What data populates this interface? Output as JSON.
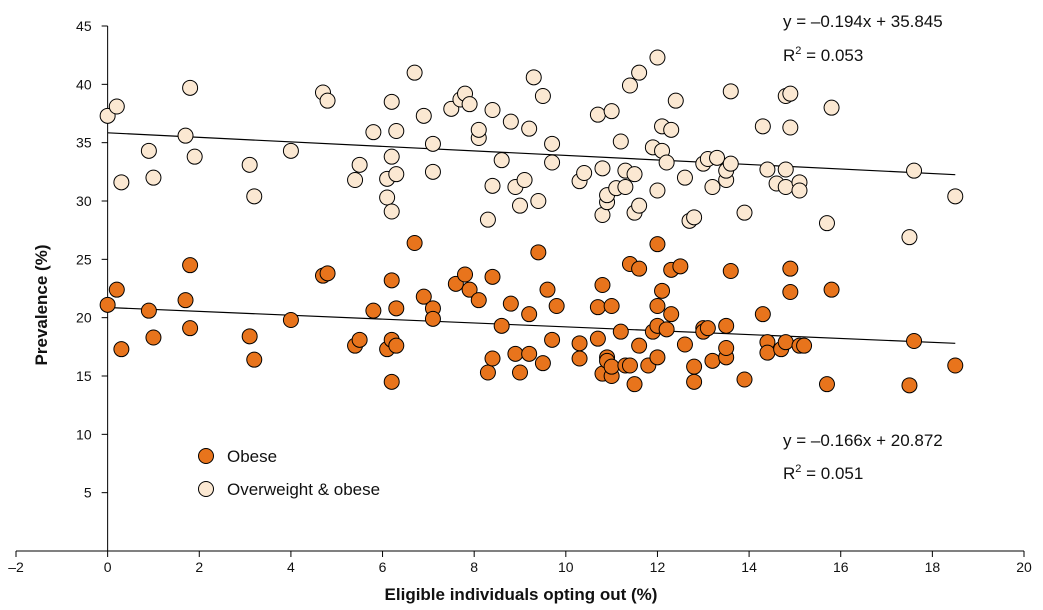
{
  "chart_data": {
    "type": "scatter",
    "xlabel": "Eligible individuals opting out (%)",
    "ylabel": "Prevalence (%)",
    "xlim": [
      -2,
      20
    ],
    "ylim": [
      0,
      45
    ],
    "x_ticks": [
      "–2",
      "0",
      "2",
      "4",
      "6",
      "8",
      "10",
      "12",
      "14",
      "16",
      "18",
      "20"
    ],
    "y_ticks": [
      "5",
      "10",
      "15",
      "20",
      "25",
      "30",
      "35",
      "40",
      "45"
    ],
    "grid": false,
    "legend_position": "lower-left inside",
    "series": [
      {
        "name": "Obese",
        "color": "#e8741c",
        "trend": {
          "slope": -0.166,
          "intercept": 20.872,
          "equation": "y = –0.166x + 20.872",
          "r2_prefix": "R",
          "r2_exp": "2",
          "r2_value": " = 0.051"
        },
        "points": [
          [
            0,
            21.1
          ],
          [
            0.2,
            22.4
          ],
          [
            0.3,
            17.3
          ],
          [
            0.9,
            20.6
          ],
          [
            1,
            18.3
          ],
          [
            1.7,
            21.5
          ],
          [
            1.8,
            24.5
          ],
          [
            1.8,
            19.1
          ],
          [
            3.1,
            18.4
          ],
          [
            3.2,
            16.4
          ],
          [
            4,
            19.8
          ],
          [
            4.7,
            23.6
          ],
          [
            4.8,
            23.8
          ],
          [
            5.4,
            17.6
          ],
          [
            5.5,
            18.1
          ],
          [
            5.8,
            20.6
          ],
          [
            6.1,
            17.3
          ],
          [
            6.2,
            23.2
          ],
          [
            6.2,
            18.1
          ],
          [
            6.2,
            14.5
          ],
          [
            6.3,
            17.6
          ],
          [
            6.3,
            20.8
          ],
          [
            6.7,
            26.4
          ],
          [
            6.9,
            21.8
          ],
          [
            7.1,
            20.8
          ],
          [
            7.1,
            19.9
          ],
          [
            7.6,
            22.9
          ],
          [
            7.8,
            23.7
          ],
          [
            7.9,
            22.4
          ],
          [
            8.1,
            21.5
          ],
          [
            8.3,
            15.3
          ],
          [
            8.4,
            23.5
          ],
          [
            8.4,
            16.5
          ],
          [
            8.6,
            19.3
          ],
          [
            8.8,
            21.2
          ],
          [
            8.9,
            16.9
          ],
          [
            9,
            15.3
          ],
          [
            9.2,
            16.9
          ],
          [
            9.2,
            20.3
          ],
          [
            9.4,
            25.6
          ],
          [
            9.5,
            16.1
          ],
          [
            9.6,
            22.4
          ],
          [
            9.7,
            18.1
          ],
          [
            9.8,
            21
          ],
          [
            10.3,
            16.5
          ],
          [
            10.3,
            17.8
          ],
          [
            10.7,
            20.9
          ],
          [
            10.7,
            18.2
          ],
          [
            10.8,
            15.2
          ],
          [
            10.8,
            22.8
          ],
          [
            10.9,
            16.6
          ],
          [
            10.9,
            16.3
          ],
          [
            11,
            15
          ],
          [
            11,
            21
          ],
          [
            11,
            15.8
          ],
          [
            11.2,
            18.8
          ],
          [
            11.3,
            15.9
          ],
          [
            11.4,
            24.6
          ],
          [
            11.4,
            15.9
          ],
          [
            11.5,
            14.3
          ],
          [
            11.6,
            24.2
          ],
          [
            11.6,
            17.6
          ],
          [
            11.8,
            15.9
          ],
          [
            11.9,
            18.8
          ],
          [
            12,
            26.3
          ],
          [
            12,
            21
          ],
          [
            12,
            19.3
          ],
          [
            12,
            16.6
          ],
          [
            12.1,
            22.3
          ],
          [
            12.2,
            19
          ],
          [
            12.3,
            24.1
          ],
          [
            12.3,
            20.3
          ],
          [
            12.5,
            24.4
          ],
          [
            12.6,
            17.7
          ],
          [
            12.8,
            15.8
          ],
          [
            12.8,
            14.5
          ],
          [
            13,
            19.1
          ],
          [
            13,
            18.8
          ],
          [
            13.1,
            19.1
          ],
          [
            13.2,
            16.3
          ],
          [
            13.5,
            16.6
          ],
          [
            13.5,
            19.3
          ],
          [
            13.5,
            17.4
          ],
          [
            13.6,
            24
          ],
          [
            13.9,
            14.7
          ],
          [
            14.3,
            20.3
          ],
          [
            14.4,
            17.9
          ],
          [
            14.4,
            17
          ],
          [
            14.7,
            17.3
          ],
          [
            14.8,
            17.9
          ],
          [
            14.9,
            22.2
          ],
          [
            14.9,
            24.2
          ],
          [
            15.1,
            17.6
          ],
          [
            15.2,
            17.6
          ],
          [
            15.7,
            14.3
          ],
          [
            15.8,
            22.4
          ],
          [
            17.5,
            14.2
          ],
          [
            17.6,
            18
          ],
          [
            18.5,
            15.9
          ]
        ]
      },
      {
        "name": "Overweight & obese",
        "color": "#fbe8d2",
        "trend": {
          "slope": -0.194,
          "intercept": 35.845,
          "equation": "y = –0.194x + 35.845",
          "r2_prefix": "R",
          "r2_exp": "2",
          "r2_value": " = 0.053"
        },
        "points": [
          [
            0,
            37.3
          ],
          [
            0.2,
            38.1
          ],
          [
            0.3,
            31.6
          ],
          [
            0.9,
            34.3
          ],
          [
            1,
            32
          ],
          [
            1.7,
            35.6
          ],
          [
            1.8,
            39.7
          ],
          [
            1.9,
            33.8
          ],
          [
            3.1,
            33.1
          ],
          [
            3.2,
            30.4
          ],
          [
            4,
            34.3
          ],
          [
            4.7,
            39.3
          ],
          [
            4.8,
            38.6
          ],
          [
            5.4,
            31.8
          ],
          [
            5.5,
            33.1
          ],
          [
            5.8,
            35.9
          ],
          [
            6.1,
            31.9
          ],
          [
            6.1,
            30.3
          ],
          [
            6.2,
            29.1
          ],
          [
            6.2,
            38.5
          ],
          [
            6.2,
            33.8
          ],
          [
            6.3,
            36
          ],
          [
            6.3,
            32.3
          ],
          [
            6.7,
            41
          ],
          [
            6.9,
            37.3
          ],
          [
            7.1,
            34.9
          ],
          [
            7.1,
            32.5
          ],
          [
            7.5,
            37.9
          ],
          [
            7.7,
            38.7
          ],
          [
            7.8,
            39.2
          ],
          [
            7.9,
            38.3
          ],
          [
            8.1,
            35.4
          ],
          [
            8.1,
            36.1
          ],
          [
            8.3,
            28.4
          ],
          [
            8.4,
            37.8
          ],
          [
            8.4,
            31.3
          ],
          [
            8.6,
            33.5
          ],
          [
            8.8,
            36.8
          ],
          [
            8.9,
            31.2
          ],
          [
            9,
            29.6
          ],
          [
            9.1,
            31.8
          ],
          [
            9.2,
            36.2
          ],
          [
            9.3,
            40.6
          ],
          [
            9.4,
            30
          ],
          [
            9.5,
            39
          ],
          [
            9.7,
            34.9
          ],
          [
            9.7,
            33.3
          ],
          [
            10.3,
            31.7
          ],
          [
            10.4,
            32.4
          ],
          [
            10.7,
            37.4
          ],
          [
            10.8,
            32.8
          ],
          [
            10.8,
            28.8
          ],
          [
            10.9,
            29.9
          ],
          [
            10.9,
            30.5
          ],
          [
            11,
            37.7
          ],
          [
            11.1,
            31.1
          ],
          [
            11.2,
            35.1
          ],
          [
            11.3,
            32.6
          ],
          [
            11.3,
            31.2
          ],
          [
            11.4,
            39.9
          ],
          [
            11.5,
            29
          ],
          [
            11.5,
            32.3
          ],
          [
            11.6,
            41
          ],
          [
            11.6,
            29.6
          ],
          [
            11.9,
            34.6
          ],
          [
            12,
            42.3
          ],
          [
            12,
            30.9
          ],
          [
            12.1,
            34.3
          ],
          [
            12.1,
            36.4
          ],
          [
            12.2,
            33.3
          ],
          [
            12.3,
            36.1
          ],
          [
            12.4,
            38.6
          ],
          [
            12.6,
            32
          ],
          [
            12.7,
            28.3
          ],
          [
            12.8,
            28.6
          ],
          [
            13,
            33.2
          ],
          [
            13.1,
            33.6
          ],
          [
            13.2,
            31.2
          ],
          [
            13.3,
            33.7
          ],
          [
            13.5,
            31.8
          ],
          [
            13.5,
            32.6
          ],
          [
            13.6,
            39.4
          ],
          [
            13.6,
            33.2
          ],
          [
            13.9,
            29
          ],
          [
            14.3,
            36.4
          ],
          [
            14.4,
            32.7
          ],
          [
            14.6,
            31.5
          ],
          [
            14.8,
            39
          ],
          [
            14.8,
            32.7
          ],
          [
            14.8,
            31.2
          ],
          [
            14.9,
            39.2
          ],
          [
            14.9,
            36.3
          ],
          [
            15.1,
            31.6
          ],
          [
            15.1,
            30.9
          ],
          [
            15.7,
            28.1
          ],
          [
            15.8,
            38
          ],
          [
            17.5,
            26.9
          ],
          [
            17.6,
            32.6
          ],
          [
            18.5,
            30.4
          ]
        ]
      }
    ]
  }
}
